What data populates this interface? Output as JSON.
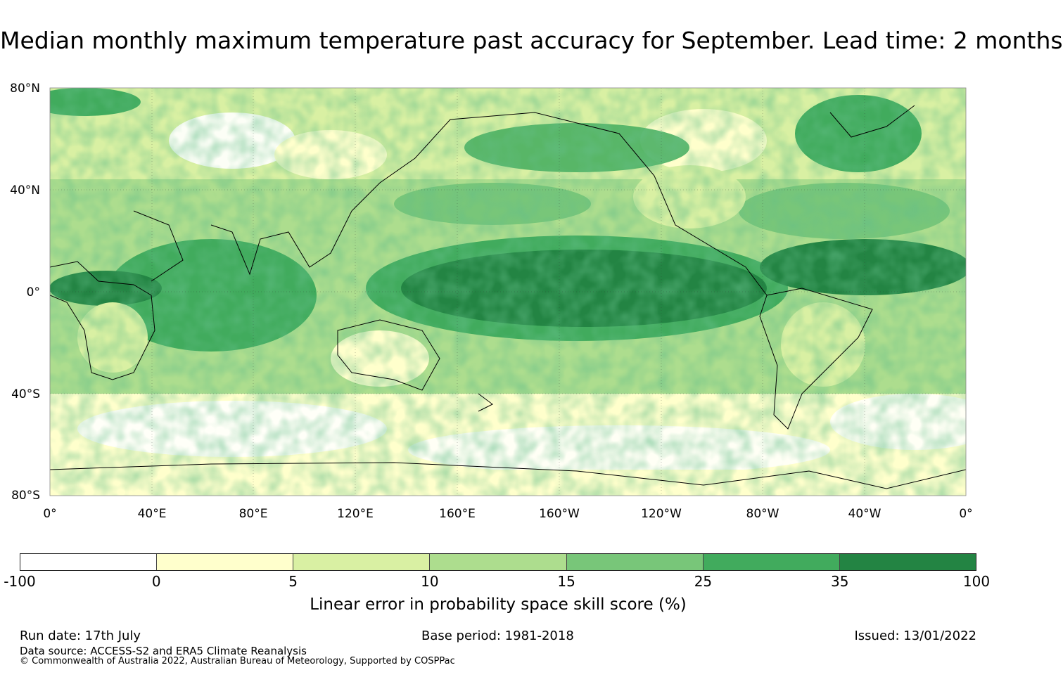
{
  "title": "Median monthly maximum temperature past accuracy for September. Lead time: 2 months",
  "map": {
    "lat_labels": [
      "80°N",
      "40°N",
      "0°",
      "40°S",
      "80°S"
    ],
    "lon_labels": [
      "0°",
      "40°E",
      "80°E",
      "120°E",
      "160°E",
      "160°W",
      "120°W",
      "80°W",
      "40°W",
      "0°"
    ],
    "ocean_band_color": "#238b45",
    "land_outline_color": "#000000"
  },
  "colorbar": {
    "colors": [
      "#ffffff",
      "#ffffcc",
      "#d9f0a3",
      "#addd8e",
      "#78c679",
      "#41ab5d",
      "#238443"
    ],
    "ticks": [
      "-100",
      "0",
      "5",
      "10",
      "15",
      "25",
      "35",
      "100"
    ],
    "label": "Linear error in probability space skill score (%)"
  },
  "footer": {
    "run_date": "Run date: 17th July",
    "base_period": "Base period: 1981-2018",
    "issued": "Issued: 13/01/2022",
    "source": "Data source: ACCESS-S2 and ERA5 Climate Reanalysis",
    "copyright": "© Commonwealth of Australia 2022, Australian Bureau of Meteorology, Supported by COSPPac"
  }
}
